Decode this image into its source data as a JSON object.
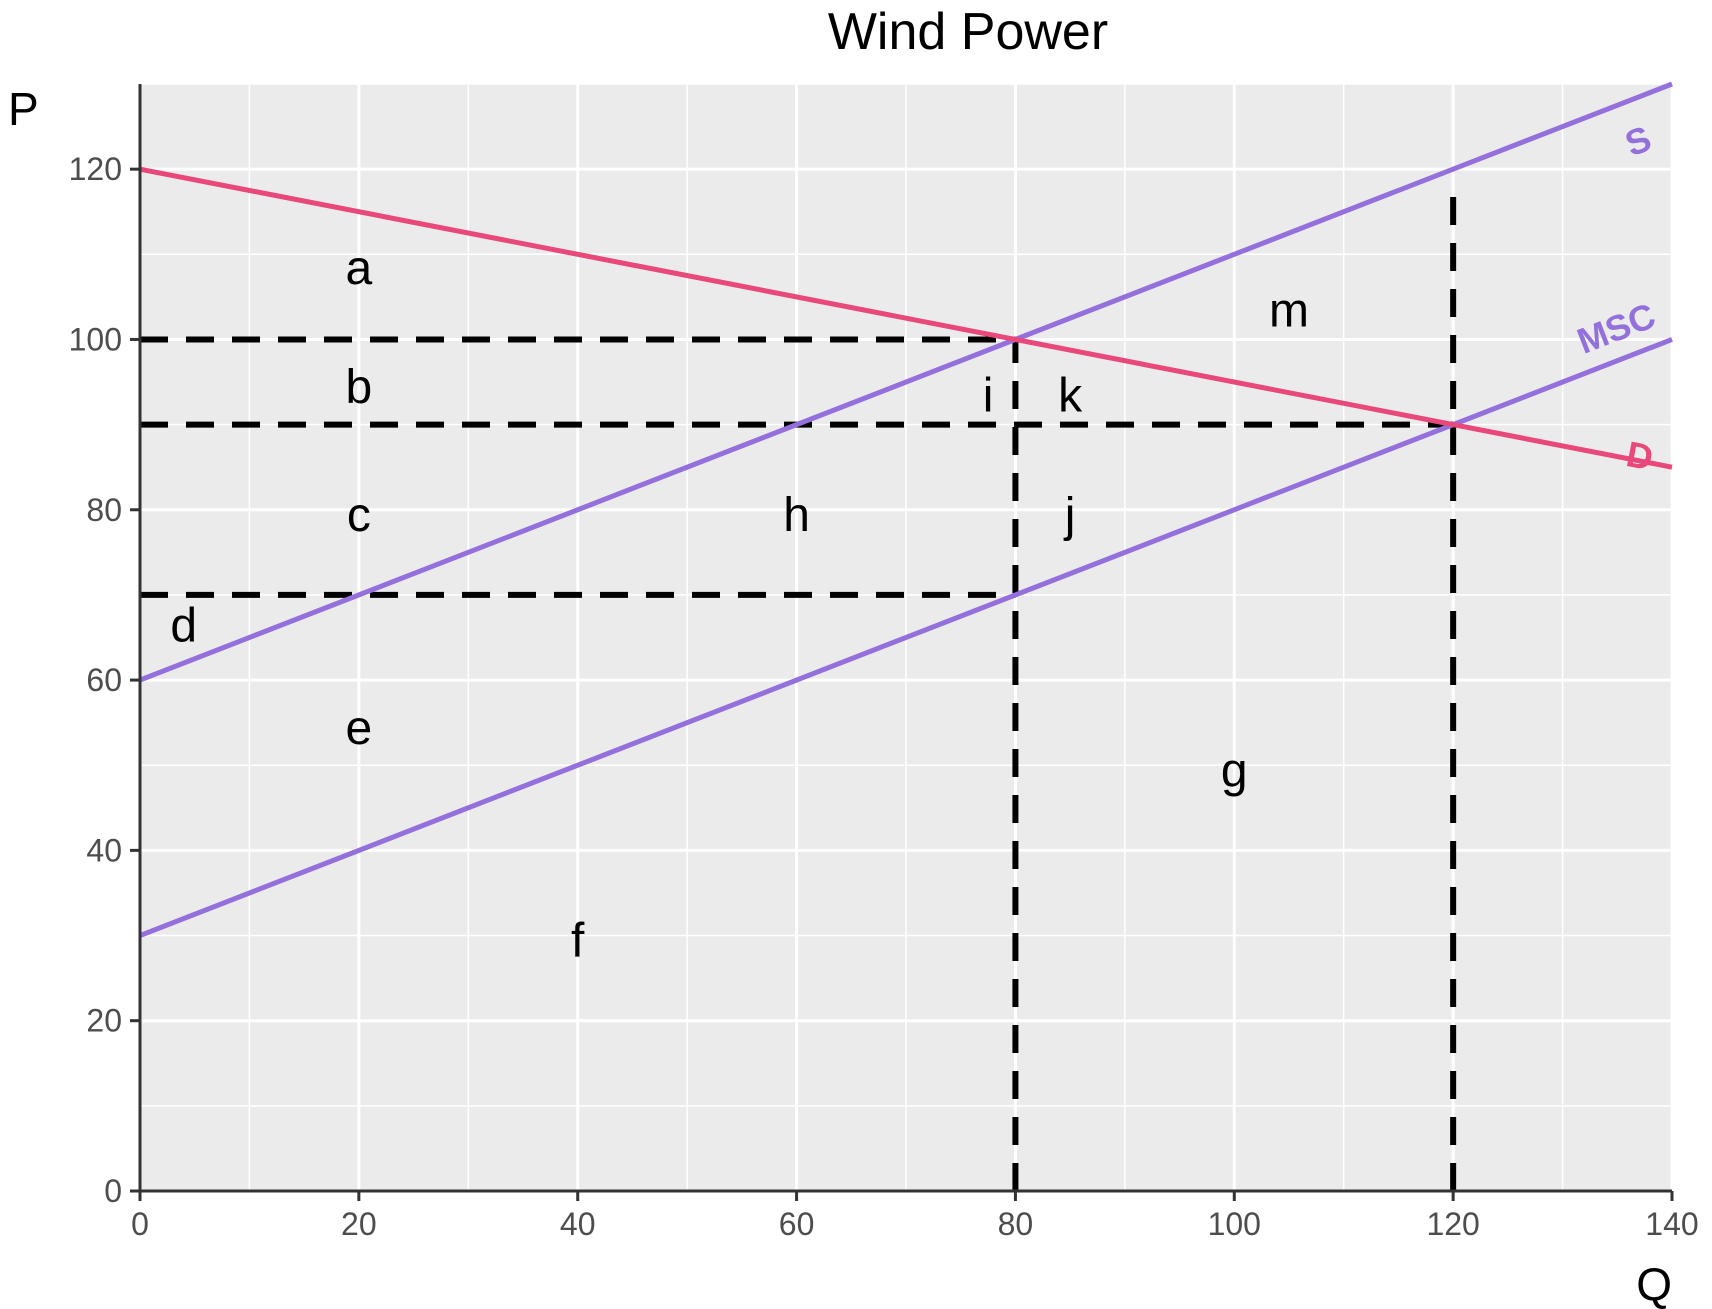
{
  "chart_data": {
    "type": "line",
    "title": "Wind Power",
    "xlabel": "Q",
    "ylabel": "P",
    "xlim": [
      0,
      140
    ],
    "ylim": [
      0,
      130
    ],
    "x_ticks": [
      0,
      20,
      40,
      60,
      80,
      100,
      120,
      140
    ],
    "y_ticks": [
      0,
      20,
      40,
      60,
      80,
      100,
      120
    ],
    "grid": true,
    "background": "#EBEBEB",
    "series": [
      {
        "name": "S",
        "color": "#9370DB",
        "x": [
          0,
          140
        ],
        "y": [
          60,
          130
        ],
        "label_at": [
          137,
          123
        ]
      },
      {
        "name": "MSC",
        "color": "#9370DB",
        "x": [
          0,
          140
        ],
        "y": [
          30,
          100
        ],
        "label_at": [
          135,
          101
        ]
      },
      {
        "name": "D",
        "color": "#E8487A",
        "x": [
          0,
          140
        ],
        "y": [
          120,
          85
        ],
        "label_at": [
          137,
          86
        ]
      }
    ],
    "reference_lines": [
      {
        "x": [
          0,
          80
        ],
        "y": [
          100,
          100
        ]
      },
      {
        "x": [
          0,
          120
        ],
        "y": [
          90,
          90
        ]
      },
      {
        "x": [
          0,
          80
        ],
        "y": [
          70,
          70
        ]
      },
      {
        "x": [
          80,
          80
        ],
        "y": [
          0,
          100
        ]
      },
      {
        "x": [
          120,
          120
        ],
        "y": [
          0,
          117
        ]
      }
    ],
    "area_labels": [
      {
        "text": "a",
        "x": 20,
        "y": 108
      },
      {
        "text": "b",
        "x": 20,
        "y": 94
      },
      {
        "text": "c",
        "x": 20,
        "y": 79
      },
      {
        "text": "d",
        "x": 4,
        "y": 66
      },
      {
        "text": "e",
        "x": 20,
        "y": 54
      },
      {
        "text": "f",
        "x": 40,
        "y": 29
      },
      {
        "text": "g",
        "x": 100,
        "y": 49
      },
      {
        "text": "h",
        "x": 60,
        "y": 79
      },
      {
        "text": "i",
        "x": 77.5,
        "y": 93
      },
      {
        "text": "j",
        "x": 85,
        "y": 79
      },
      {
        "text": "k",
        "x": 85,
        "y": 93
      },
      {
        "text": "m",
        "x": 105,
        "y": 103
      }
    ]
  }
}
